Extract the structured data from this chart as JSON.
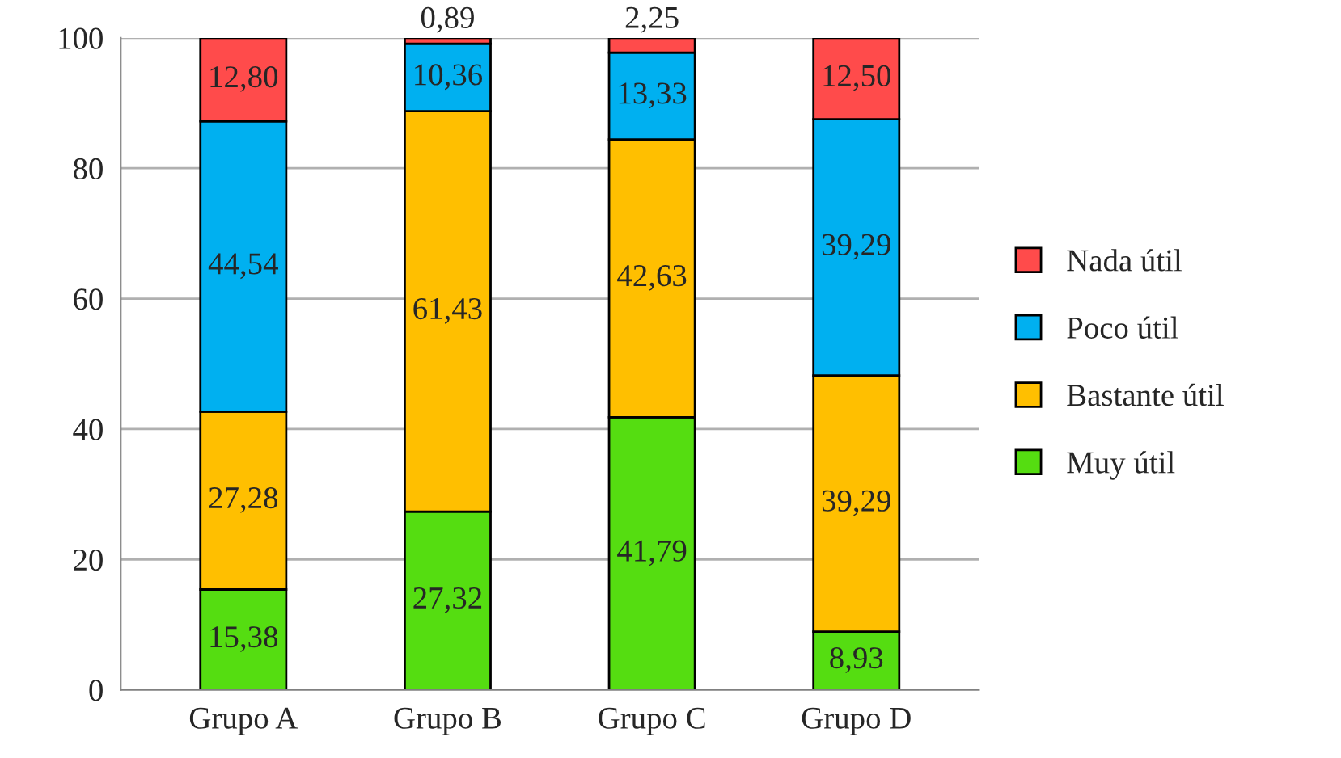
{
  "chart_data": {
    "type": "bar",
    "stacked": true,
    "categories": [
      "Grupo A",
      "Grupo B",
      "Grupo C",
      "Grupo D"
    ],
    "series": [
      {
        "name": "Muy útil",
        "color": "#55dd11",
        "values": [
          15.38,
          27.32,
          41.79,
          8.93
        ],
        "value_labels": [
          "15,38",
          "27,32",
          "41,79",
          "8,93"
        ]
      },
      {
        "name": "Bastante útil",
        "color": "#ffbf00",
        "values": [
          27.28,
          61.43,
          42.63,
          39.29
        ],
        "value_labels": [
          "27,28",
          "61,43",
          "42,63",
          "39,29"
        ]
      },
      {
        "name": "Poco útil",
        "color": "#00b0f0",
        "values": [
          44.54,
          10.36,
          13.33,
          39.29
        ],
        "value_labels": [
          "44,54",
          "10,36",
          "13,33",
          "39,29"
        ]
      },
      {
        "name": "Nada útil",
        "color": "#ff4b4b",
        "values": [
          12.8,
          0.89,
          2.25,
          12.5
        ],
        "value_labels": [
          "12,80",
          "0,89",
          "2,25",
          "12,50"
        ]
      }
    ],
    "ylim": [
      0,
      100
    ],
    "yticks": [
      0,
      20,
      40,
      60,
      80,
      100
    ],
    "grid": "y",
    "legend": "right"
  }
}
